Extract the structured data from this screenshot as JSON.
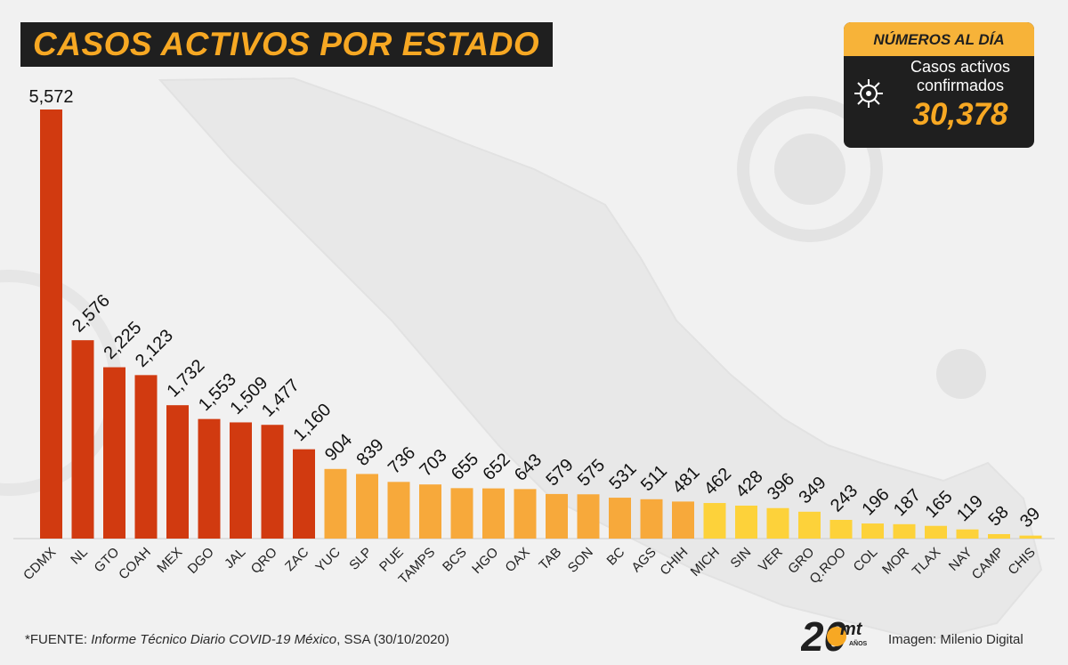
{
  "title": "CASOS ACTIVOS POR ESTADO",
  "info_card": {
    "header": "NÚMEROS AL DÍA",
    "label": "Casos activos confirmados",
    "value": "30,378"
  },
  "footnote": {
    "prefix": "*FUENTE: ",
    "source": "Informe Técnico Diario COVID-19 México",
    "suffix": ", SSA (30/10/2020)"
  },
  "credit": "Imagen: Milenio Digital",
  "logo": {
    "number": "20",
    "letters": "mt",
    "small": "AÑOS"
  },
  "colors": {
    "red": "#d13a10",
    "orange": "#f7a93b",
    "yellow": "#fdd23a",
    "title_accent": "#f7a823",
    "dark": "#1f1f1f"
  },
  "chart_data": {
    "type": "bar",
    "categories": [
      "CDMX",
      "NL",
      "GTO",
      "COAH",
      "MEX",
      "DGO",
      "JAL",
      "QRO",
      "ZAC",
      "YUC",
      "SLP",
      "PUE",
      "TAMPS",
      "BCS",
      "HGO",
      "OAX",
      "TAB",
      "SON",
      "BC",
      "AGS",
      "CHIH",
      "MICH",
      "SIN",
      "VER",
      "GRO",
      "Q.ROO",
      "COL",
      "MOR",
      "TLAX",
      "NAY",
      "CAMP",
      "CHIS"
    ],
    "values": [
      5572,
      2576,
      2225,
      2123,
      1732,
      1553,
      1509,
      1477,
      1160,
      904,
      839,
      736,
      703,
      655,
      652,
      643,
      579,
      575,
      531,
      511,
      481,
      462,
      428,
      396,
      349,
      243,
      196,
      187,
      165,
      119,
      58,
      39
    ],
    "value_labels": [
      "5,572",
      "2,576",
      "2,225",
      "2,123",
      "1,732",
      "1,553",
      "1,509",
      "1,477",
      "1,160",
      "904",
      "839",
      "736",
      "703",
      "655",
      "652",
      "643",
      "579",
      "575",
      "531",
      "511",
      "481",
      "462",
      "428",
      "396",
      "349",
      "243",
      "196",
      "187",
      "165",
      "119",
      "58",
      "39"
    ],
    "color_groups": [
      "red",
      "red",
      "red",
      "red",
      "red",
      "red",
      "red",
      "red",
      "red",
      "orange",
      "orange",
      "orange",
      "orange",
      "orange",
      "orange",
      "orange",
      "orange",
      "orange",
      "orange",
      "orange",
      "orange",
      "yellow",
      "yellow",
      "yellow",
      "yellow",
      "yellow",
      "yellow",
      "yellow",
      "yellow",
      "yellow",
      "yellow",
      "yellow"
    ],
    "title": "CASOS ACTIVOS POR ESTADO",
    "xlabel": "",
    "ylabel": "",
    "ylim": [
      0,
      5572
    ],
    "grid": false,
    "legend": "none"
  }
}
